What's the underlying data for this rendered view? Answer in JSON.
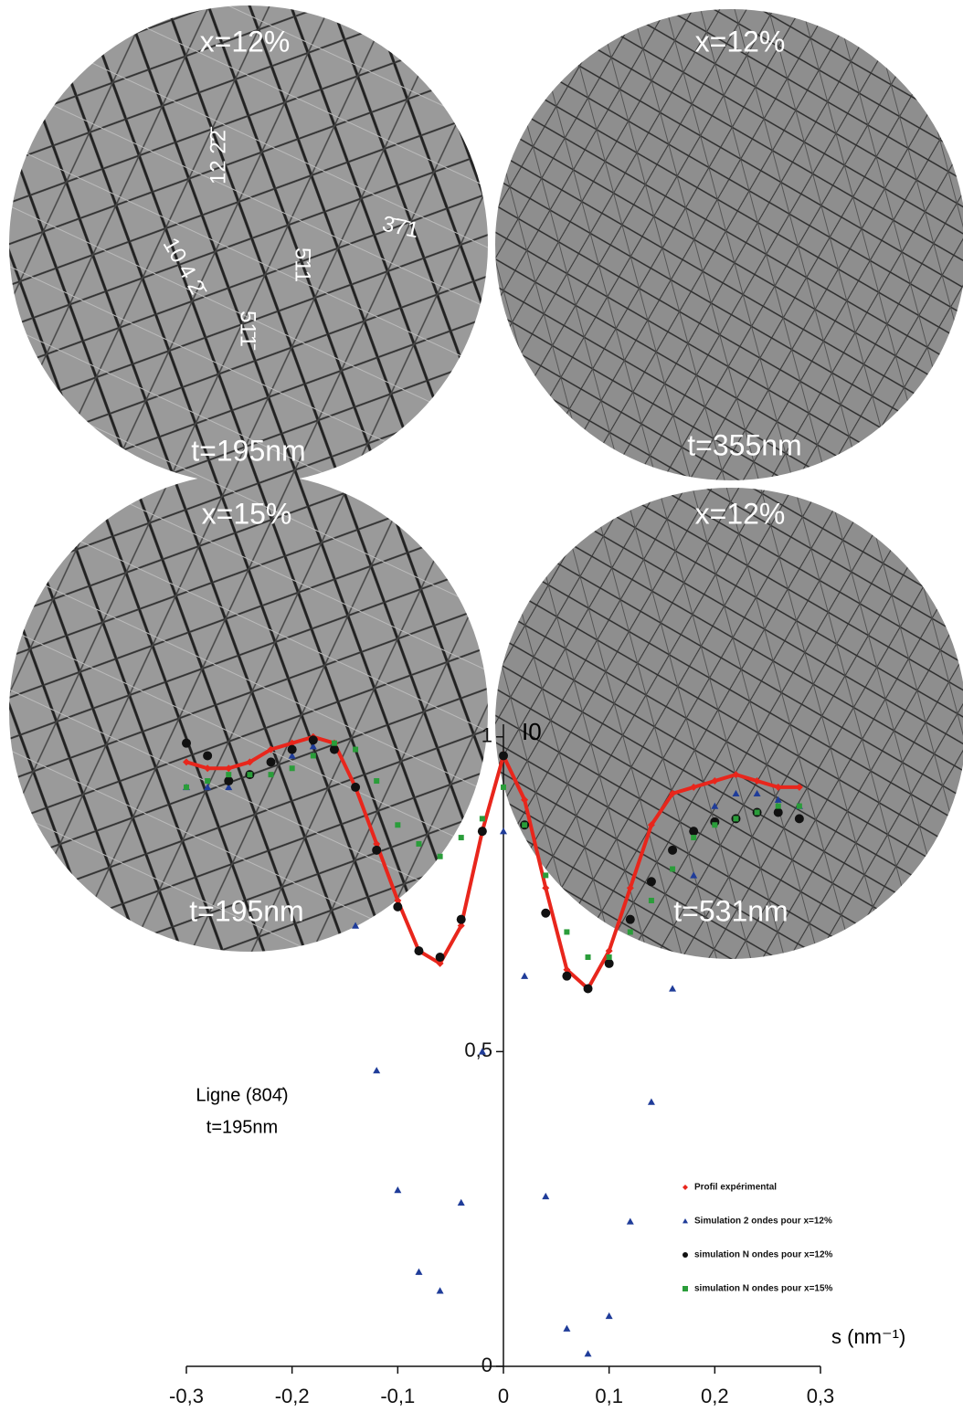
{
  "panels": [
    {
      "composition": "x=12%",
      "thickness": "t=195nm",
      "indices": [
        "12 2̄2̄",
        "10 4 2̄",
        "5̄11",
        "3̄7̄1",
        "51̄1̄"
      ]
    },
    {
      "composition": "x=12%",
      "thickness": "t=355nm"
    },
    {
      "composition": "x=15%",
      "thickness": "t=195nm"
    },
    {
      "composition": "x=12%",
      "thickness": "t=531nm"
    }
  ],
  "chart_data": {
    "type": "scatter",
    "y_label": "I0",
    "x_label": "s (nm⁻¹)",
    "annotations": [
      "Ligne (804̄)",
      "t=195nm"
    ],
    "x": [
      -0.3,
      -0.28,
      -0.26,
      -0.24,
      -0.22,
      -0.2,
      -0.18,
      -0.16,
      -0.14,
      -0.12,
      -0.1,
      -0.08,
      -0.06,
      -0.04,
      -0.02,
      0,
      0.02,
      0.04,
      0.06,
      0.08,
      0.1,
      0.12,
      0.14,
      0.16,
      0.18,
      0.2,
      0.22,
      0.24,
      0.26,
      0.28
    ],
    "series": [
      {
        "name": "Profil expérimental",
        "color": "#e8261c",
        "marker": "diamond",
        "values": [
          0.96,
          0.95,
          0.95,
          0.96,
          0.98,
          0.99,
          1.0,
          0.99,
          0.92,
          0.83,
          0.74,
          0.66,
          0.64,
          0.7,
          0.85,
          0.97,
          0.9,
          0.76,
          0.63,
          0.6,
          0.66,
          0.76,
          0.86,
          0.91,
          0.92,
          0.93,
          0.94,
          0.93,
          0.92,
          0.92
        ]
      },
      {
        "name": "Simulation 2 ondes pour x=12%",
        "color": "#1f3c99",
        "marker": "triangle",
        "values": [
          0.92,
          0.92,
          0.92,
          0.94,
          0.96,
          0.97,
          0.985,
          0.98,
          0.7,
          0.47,
          0.28,
          0.15,
          0.12,
          0.26,
          0.5,
          0.85,
          0.62,
          0.27,
          0.06,
          0.02,
          0.08,
          0.23,
          0.42,
          0.6,
          0.78,
          0.89,
          0.91,
          0.91,
          0.9,
          0.89
        ]
      },
      {
        "name": "simulation N ondes pour x=12%",
        "color": "#111111",
        "marker": "circle",
        "values": [
          0.99,
          0.97,
          0.93,
          0.94,
          0.96,
          0.98,
          0.995,
          0.98,
          0.92,
          0.82,
          0.73,
          0.66,
          0.65,
          0.71,
          0.85,
          0.97,
          0.86,
          0.72,
          0.62,
          0.6,
          0.64,
          0.71,
          0.77,
          0.82,
          0.85,
          0.865,
          0.87,
          0.88,
          0.88,
          0.87
        ]
      },
      {
        "name": "simulation N ondes pour x=15%",
        "color": "#2a9d3a",
        "marker": "square",
        "values": [
          0.92,
          0.93,
          0.94,
          0.94,
          0.94,
          0.95,
          0.97,
          0.99,
          0.98,
          0.93,
          0.86,
          0.83,
          0.81,
          0.84,
          0.87,
          0.92,
          0.86,
          0.78,
          0.69,
          0.65,
          0.65,
          0.69,
          0.74,
          0.79,
          0.84,
          0.86,
          0.87,
          0.88,
          0.89,
          0.89
        ]
      }
    ],
    "xlim": [
      -0.3,
      0.3
    ],
    "ylim": [
      0,
      1.02
    ],
    "xticks": [
      {
        "value": -0.3,
        "label": "-0,3"
      },
      {
        "value": -0.2,
        "label": "-0,2"
      },
      {
        "value": -0.1,
        "label": "-0,1"
      },
      0,
      {
        "value": 0.1,
        "label": "0,1"
      },
      {
        "value": 0.2,
        "label": "0,2"
      },
      {
        "value": 0.3,
        "label": "0,3"
      }
    ],
    "yticks": [
      0,
      {
        "value": 0.5,
        "label": "0,5"
      },
      1
    ]
  }
}
